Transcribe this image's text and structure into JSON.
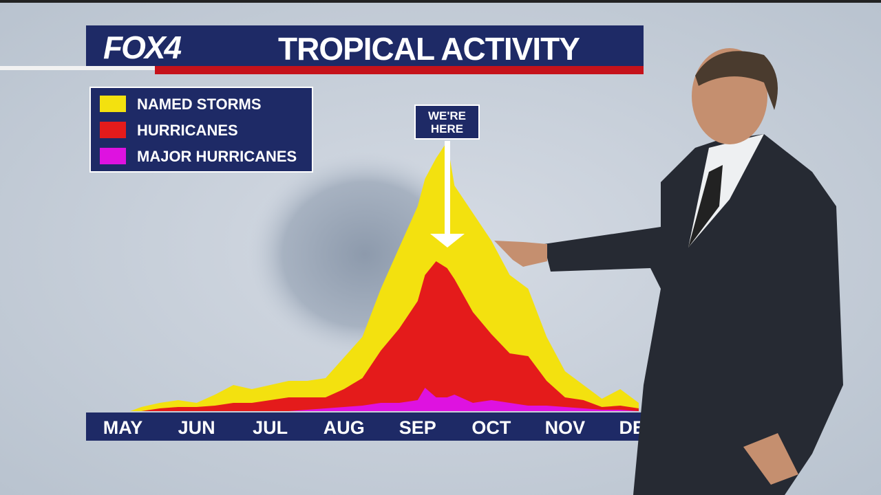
{
  "logo": "FOX4",
  "chart_data": {
    "type": "area",
    "title": "TROPICAL ACTIVITY",
    "annotation": "WE'RE HERE",
    "x": [
      0.1,
      0.25,
      0.5,
      0.75,
      1.0,
      1.25,
      1.5,
      1.75,
      2.0,
      2.25,
      2.5,
      2.75,
      3.0,
      3.25,
      3.5,
      3.75,
      4.0,
      4.1,
      4.25,
      4.4,
      4.5,
      4.75,
      5.0,
      5.25,
      5.5,
      5.75,
      6.0,
      6.25,
      6.5,
      6.75,
      7.0
    ],
    "xlim": [
      -0.5,
      7.0
    ],
    "xticks": [
      {
        "value": 0,
        "label": "MAY"
      },
      {
        "value": 1,
        "label": "JUN"
      },
      {
        "value": 2,
        "label": "JUL"
      },
      {
        "value": 3,
        "label": "AUG"
      },
      {
        "value": 4,
        "label": "SEP"
      },
      {
        "value": 5,
        "label": "OCT"
      },
      {
        "value": 6,
        "label": "NOV"
      },
      {
        "value": 7,
        "label": "DEC"
      }
    ],
    "ylim": [
      0,
      100
    ],
    "series": [
      {
        "name": "NAMED STORMS",
        "color": "#f3e10f",
        "values": [
          0,
          1.5,
          3,
          4,
          3,
          6,
          9.5,
          8,
          9.5,
          11,
          11,
          12,
          19.5,
          27,
          44.5,
          59.5,
          74.5,
          84.5,
          92,
          98,
          82,
          72,
          62,
          49.5,
          44.5,
          27,
          14.5,
          9.5,
          4.5,
          8,
          3
        ]
      },
      {
        "name": "HURRICANES",
        "color": "#e41b1b",
        "values": [
          0,
          0,
          1,
          1.5,
          1.5,
          2,
          3,
          3,
          4,
          5,
          5,
          5,
          8,
          12,
          22,
          30,
          40,
          49.5,
          54.5,
          52,
          48,
          36,
          28,
          21,
          20,
          11,
          5,
          4,
          1.5,
          2,
          1
        ]
      },
      {
        "name": "MAJOR HURRICANES",
        "color": "#de12e0",
        "values": [
          0,
          0,
          0,
          0,
          0,
          0,
          0,
          0,
          0,
          0,
          0.5,
          1,
          1.5,
          2,
          3,
          3,
          4,
          8.5,
          5,
          5,
          6,
          3,
          4,
          3,
          2,
          2,
          1.5,
          1,
          0.5,
          0.5,
          0
        ]
      }
    ]
  }
}
